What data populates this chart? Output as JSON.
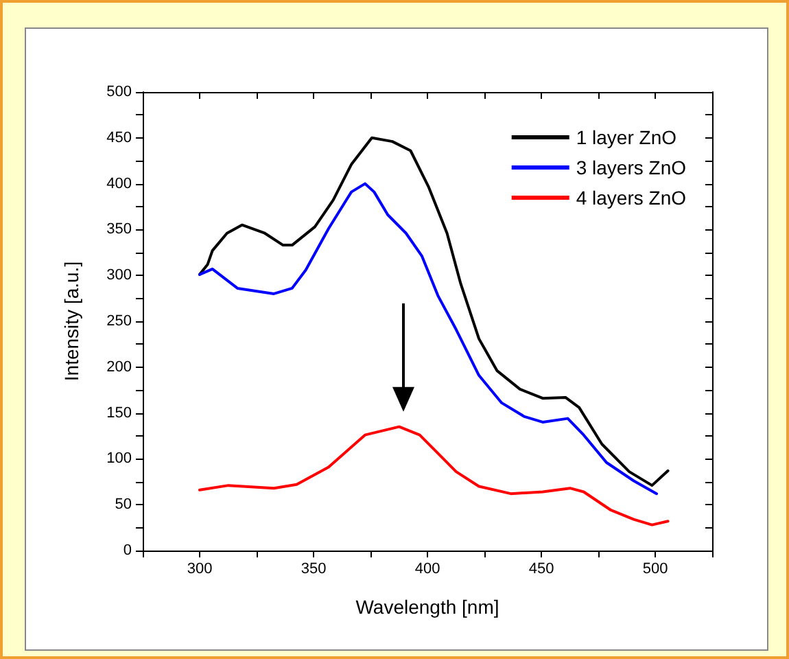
{
  "chart_data": {
    "type": "line",
    "xlabel": "Wavelength [nm]",
    "ylabel": "Intensity [a.u.]",
    "xlim": [
      275,
      525
    ],
    "xticks": [
      300,
      350,
      400,
      450,
      500
    ],
    "ylim": [
      0,
      500
    ],
    "yticks": [
      0,
      50,
      100,
      150,
      200,
      250,
      300,
      350,
      400,
      450,
      500
    ],
    "grid": false,
    "legend": "top right",
    "marker": "none",
    "line_style": "solid",
    "series": [
      {
        "name": "1 layer ZnO",
        "color": "#000000",
        "x": [
          300,
          303.5,
          305.6,
          312,
          318.6,
          328.6,
          336.6,
          340.6,
          350.6,
          358.6,
          366.6,
          375.6,
          384.6,
          392.6,
          400.6,
          408.6,
          414.6,
          422.6,
          430.6,
          440.6,
          450.6,
          460.6,
          466.6,
          476.6,
          488.6,
          498.6,
          505.6
        ],
        "values": [
          301,
          312,
          327,
          346,
          355,
          346,
          333,
          333,
          353,
          382,
          421,
          450,
          446,
          436,
          396,
          346,
          291,
          231,
          196,
          176,
          166,
          167,
          156,
          116,
          86,
          71,
          87
        ]
      },
      {
        "name": "3 layers ZnO",
        "color": "#0000ff",
        "x": [
          300,
          305.6,
          316.6,
          332.6,
          340.6,
          346.6,
          356.6,
          366.6,
          372.6,
          376.6,
          382.6,
          390.6,
          397.6,
          404.6,
          412.6,
          422.6,
          432.6,
          442.6,
          450.6,
          461.6,
          468.6,
          478.6,
          490.6,
          500.6
        ],
        "values": [
          301,
          307,
          286,
          280,
          286,
          306,
          351,
          391,
          400,
          391,
          366,
          346,
          321,
          278,
          241,
          191,
          161,
          146,
          140,
          144,
          126,
          96,
          76,
          62
        ]
      },
      {
        "name": "4 layers ZnO",
        "color": "#ff0000",
        "x": [
          300,
          312.6,
          332.6,
          342.6,
          356.6,
          372.6,
          387.6,
          396.6,
          402.6,
          412.6,
          422.6,
          436.6,
          450.6,
          462.6,
          468.6,
          480.6,
          490.6,
          498.6,
          505.6
        ],
        "values": [
          66,
          71,
          68,
          72,
          91,
          126,
          135,
          126,
          111,
          86,
          70,
          62,
          64,
          68,
          64,
          44,
          34,
          28,
          32
        ]
      }
    ]
  }
}
